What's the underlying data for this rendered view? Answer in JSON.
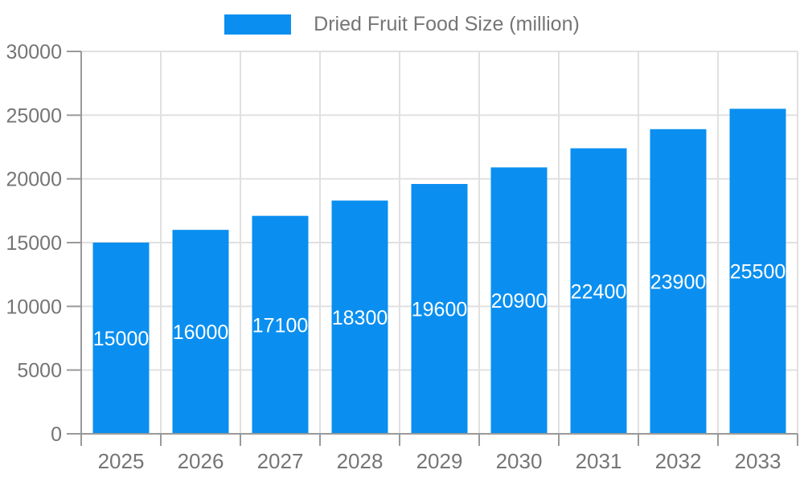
{
  "chart_data": {
    "type": "bar",
    "series_name": "Dried Fruit Food Size (million)",
    "categories": [
      "2025",
      "2026",
      "2027",
      "2028",
      "2029",
      "2030",
      "2031",
      "2032",
      "2033"
    ],
    "values": [
      15000,
      16000,
      17100,
      18300,
      19600,
      20900,
      22400,
      23900,
      25500
    ],
    "xlabel": "",
    "ylabel": "",
    "ylim": [
      0,
      30000
    ],
    "yticks": [
      0,
      5000,
      10000,
      15000,
      20000,
      25000,
      30000
    ],
    "grid": true,
    "legend": {
      "entries": [
        "Dried Fruit Food Size (million)"
      ],
      "position": "top-center"
    },
    "value_labels": {
      "position": "inside-center"
    },
    "colors": {
      "bar": "#0A8FF0",
      "bar_label": "#FFFFFF",
      "grid_line": "#E0E0E0",
      "axis_line": "#999999",
      "axis_text": "#757575",
      "background": "#FFFFFF"
    }
  }
}
